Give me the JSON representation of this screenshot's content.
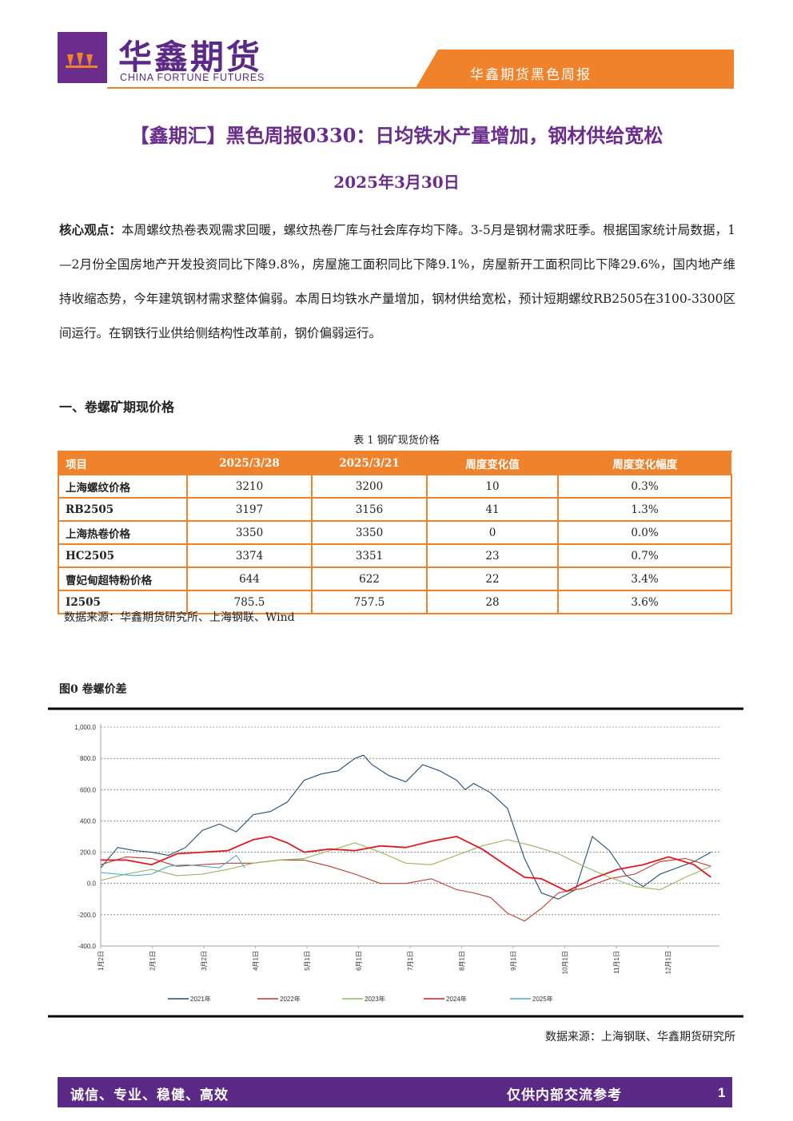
{
  "header": {
    "logo_cn": "华鑫期货",
    "logo_en": "CHINA FORTUNE FUTURES",
    "report_name": "华鑫期货黑色周报"
  },
  "title": "【鑫期汇】黑色周报0330：日均铁水产量增加，钢材供给宽松",
  "date": "2025年3月30日",
  "core": {
    "label": "核心观点：",
    "text": "本周螺纹热卷表观需求回暖，螺纹热卷厂库与社会库存均下降。3-5月是钢材需求旺季。根据国家统计局数据，1—2月份全国房地产开发投资同比下降9.8%，房屋施工面积同比下降9.1%，房屋新开工面积同比下降29.6%，国内地产维持收缩态势，今年建筑钢材需求整体偏弱。本周日均铁水产量增加，钢材供给宽松，预计短期螺纹RB2505在3100-3300区间运行。在钢铁行业供给侧结构性改革前，钢价偏弱运行。"
  },
  "section1": "一、卷螺矿期现价格",
  "table": {
    "caption": "表 1 钢矿现货价格",
    "headers": [
      "项目",
      "2025/3/28",
      "2025/3/21",
      "周度变化值",
      "周度变化幅度"
    ],
    "rows": [
      [
        "上海螺纹价格",
        "3210",
        "3200",
        "10",
        "0.3%"
      ],
      [
        "RB2505",
        "3197",
        "3156",
        "41",
        "1.3%"
      ],
      [
        "上海热卷价格",
        "3350",
        "3350",
        "0",
        "0.0%"
      ],
      [
        "HC2505",
        "3374",
        "3351",
        "23",
        "0.7%"
      ],
      [
        "曹妃甸超特粉价格",
        "644",
        "622",
        "22",
        "3.4%"
      ],
      [
        "I2505",
        "785.5",
        "757.5",
        "28",
        "3.6%"
      ]
    ],
    "source": "数据来源：华鑫期货研究所、上海钢联、Wind"
  },
  "figure": {
    "title": "图0  卷螺价差",
    "source": "数据来源：上海钢联、华鑫期货研究所"
  },
  "chart_data": {
    "type": "line",
    "title": "",
    "ylim": [
      -400,
      1000
    ],
    "yticks": [
      "1,000.0",
      "800.0",
      "600.0",
      "400.0",
      "200.0",
      "0.0",
      "-200.0",
      "-400.0"
    ],
    "xticks": [
      "1月2日",
      "2月1日",
      "3月2日",
      "4月1日",
      "5月1日",
      "6月1日",
      "7月1日",
      "8月1日",
      "9月1日",
      "10月1日",
      "11月1日",
      "12月1日"
    ],
    "grid": "horizontal dashed",
    "legend_position": "bottom",
    "colors": {
      "2021年": "#1f4e79",
      "2022年": "#c0392b",
      "2023年": "#92b85a",
      "2024年": "#e0191f",
      "2025年": "#4bacc6"
    },
    "series": [
      {
        "name": "2021年",
        "x": [
          0,
          10,
          20,
          30,
          40,
          50,
          60,
          70,
          80,
          90,
          100,
          110,
          120,
          130,
          140,
          150,
          155,
          160,
          170,
          180,
          190,
          200,
          210,
          215,
          220,
          230,
          240,
          250,
          260,
          270,
          280,
          290,
          300,
          310,
          320,
          330,
          340,
          350,
          360
        ],
        "y": [
          100,
          230,
          210,
          200,
          180,
          230,
          340,
          380,
          330,
          440,
          460,
          520,
          660,
          700,
          720,
          800,
          820,
          760,
          690,
          650,
          760,
          720,
          660,
          600,
          640,
          580,
          480,
          160,
          -60,
          -100,
          -40,
          300,
          210,
          50,
          -20,
          60,
          100,
          140,
          200
        ]
      },
      {
        "name": "2022年",
        "x": [
          0,
          15,
          30,
          45,
          60,
          75,
          90,
          105,
          120,
          135,
          150,
          165,
          180,
          195,
          210,
          220,
          230,
          240,
          250,
          260,
          270,
          285,
          300,
          315,
          330,
          345,
          360
        ],
        "y": [
          120,
          170,
          160,
          110,
          120,
          130,
          130,
          150,
          150,
          110,
          60,
          0,
          0,
          30,
          -40,
          -60,
          -90,
          -190,
          -240,
          -160,
          -60,
          -30,
          30,
          60,
          140,
          160,
          110
        ]
      },
      {
        "name": "2023年",
        "x": [
          0,
          15,
          30,
          45,
          60,
          75,
          90,
          105,
          120,
          135,
          150,
          165,
          180,
          195,
          210,
          225,
          240,
          255,
          270,
          285,
          300,
          315,
          330,
          345,
          360
        ],
        "y": [
          20,
          60,
          90,
          50,
          60,
          90,
          130,
          150,
          160,
          210,
          260,
          200,
          130,
          120,
          180,
          240,
          280,
          240,
          190,
          110,
          40,
          -20,
          -40,
          40,
          110
        ]
      },
      {
        "name": "2024年",
        "x": [
          0,
          15,
          30,
          45,
          60,
          75,
          90,
          100,
          110,
          120,
          135,
          150,
          165,
          180,
          195,
          210,
          225,
          240,
          250,
          260,
          275,
          290,
          305,
          320,
          335,
          350,
          360
        ],
        "y": [
          150,
          150,
          120,
          190,
          200,
          210,
          280,
          300,
          260,
          200,
          220,
          210,
          240,
          230,
          270,
          300,
          220,
          110,
          40,
          30,
          -50,
          30,
          90,
          120,
          170,
          120,
          40
        ]
      },
      {
        "name": "2025年",
        "x": [
          0,
          10,
          20,
          30,
          40,
          50,
          60,
          70,
          80,
          85
        ],
        "y": [
          70,
          60,
          50,
          60,
          110,
          120,
          110,
          100,
          180,
          100
        ]
      }
    ]
  }
}
